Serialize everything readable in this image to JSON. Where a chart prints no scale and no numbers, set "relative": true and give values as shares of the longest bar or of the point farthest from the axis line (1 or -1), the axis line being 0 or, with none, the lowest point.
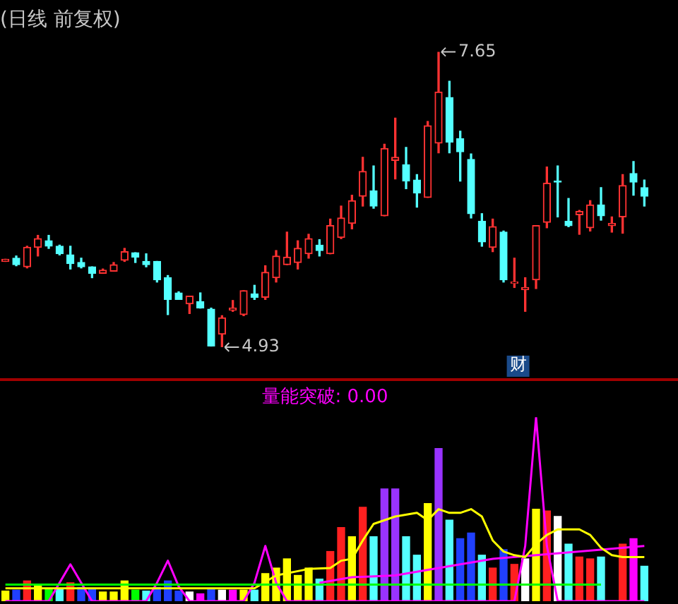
{
  "chart_data": [
    {
      "type": "candlestick",
      "title": "(日线 前复权)",
      "categories": [
        null,
        null,
        null,
        null,
        null,
        null,
        null,
        null,
        null,
        null,
        null,
        null,
        null,
        null,
        null,
        null,
        null,
        null,
        null,
        null,
        null,
        null,
        null,
        null,
        null,
        null,
        null,
        null,
        null,
        null,
        null,
        null,
        null,
        null,
        null,
        null,
        null,
        null,
        null,
        null,
        null,
        null,
        null,
        null,
        null,
        null,
        null,
        null,
        null,
        null,
        null,
        null,
        null,
        null,
        null,
        null,
        null,
        null,
        null,
        null
      ],
      "ohlc": [
        [
          5.72,
          5.74,
          5.72,
          5.74
        ],
        [
          5.75,
          5.77,
          5.68,
          5.69
        ],
        [
          5.67,
          5.86,
          5.66,
          5.85
        ],
        [
          5.85,
          5.96,
          5.77,
          5.93
        ],
        [
          5.91,
          5.96,
          5.84,
          5.86
        ],
        [
          5.86,
          5.87,
          5.78,
          5.79
        ],
        [
          5.78,
          5.86,
          5.65,
          5.7
        ],
        [
          5.71,
          5.75,
          5.66,
          5.67
        ],
        [
          5.67,
          5.67,
          5.57,
          5.61
        ],
        [
          5.61,
          5.65,
          5.61,
          5.64
        ],
        [
          5.63,
          5.71,
          5.63,
          5.69
        ],
        [
          5.73,
          5.84,
          5.72,
          5.81
        ],
        [
          5.8,
          5.8,
          5.71,
          5.76
        ],
        [
          5.72,
          5.79,
          5.67,
          5.69
        ],
        [
          5.72,
          5.72,
          5.53,
          5.55
        ],
        [
          5.57,
          5.59,
          5.23,
          5.37
        ],
        [
          5.43,
          5.44,
          5.37,
          5.37
        ],
        [
          5.33,
          5.4,
          5.24,
          5.4
        ],
        [
          5.35,
          5.43,
          5.29,
          5.29
        ],
        [
          5.28,
          5.29,
          4.94,
          4.94
        ],
        [
          5.05,
          5.22,
          4.93,
          5.2
        ],
        [
          5.27,
          5.36,
          5.26,
          5.29
        ],
        [
          5.23,
          5.45,
          5.22,
          5.45
        ],
        [
          5.42,
          5.5,
          5.37,
          5.39
        ],
        [
          5.39,
          5.68,
          5.37,
          5.62
        ],
        [
          5.57,
          5.82,
          5.53,
          5.77
        ],
        [
          5.69,
          5.99,
          5.69,
          5.76
        ],
        [
          5.71,
          5.91,
          5.65,
          5.84
        ],
        [
          5.79,
          5.97,
          5.75,
          5.93
        ],
        [
          5.87,
          5.92,
          5.77,
          5.82
        ],
        [
          5.79,
          6.11,
          5.79,
          6.05
        ],
        [
          5.94,
          6.23,
          5.93,
          6.12
        ],
        [
          6.07,
          6.33,
          6.02,
          6.28
        ],
        [
          6.32,
          6.68,
          6.23,
          6.55
        ],
        [
          6.37,
          6.6,
          6.21,
          6.23
        ],
        [
          6.14,
          6.8,
          6.14,
          6.76
        ],
        [
          6.65,
          7.04,
          6.48,
          6.68
        ],
        [
          6.61,
          6.77,
          6.39,
          6.46
        ],
        [
          6.47,
          6.52,
          6.22,
          6.35
        ],
        [
          6.31,
          7.01,
          6.31,
          6.97
        ],
        [
          6.81,
          7.65,
          6.72,
          7.28
        ],
        [
          7.23,
          7.38,
          6.72,
          6.82
        ],
        [
          6.85,
          6.92,
          6.46,
          6.73
        ],
        [
          6.66,
          6.71,
          6.12,
          6.16
        ],
        [
          6.09,
          6.16,
          5.86,
          5.9
        ],
        [
          5.85,
          6.11,
          5.81,
          6.04
        ],
        [
          5.99,
          6.0,
          5.53,
          5.55
        ],
        [
          5.52,
          5.75,
          5.48,
          5.53
        ],
        [
          5.46,
          5.57,
          5.26,
          5.48
        ],
        [
          5.55,
          6.05,
          5.47,
          6.05
        ],
        [
          6.08,
          6.59,
          6.03,
          6.44
        ],
        [
          6.46,
          6.6,
          6.13,
          6.45
        ],
        [
          6.09,
          6.3,
          6.04,
          6.05
        ],
        [
          6.15,
          6.19,
          5.97,
          6.18
        ],
        [
          6.03,
          6.28,
          6.0,
          6.24
        ],
        [
          6.24,
          6.4,
          6.1,
          6.14
        ],
        [
          6.05,
          6.13,
          5.99,
          6.07
        ],
        [
          6.13,
          6.52,
          5.98,
          6.42
        ],
        [
          6.53,
          6.64,
          6.33,
          6.45
        ],
        [
          6.4,
          6.47,
          6.23,
          6.32
        ]
      ],
      "annotations": [
        "7.65",
        "4.93",
        "财"
      ]
    },
    {
      "type": "bar",
      "relative": true,
      "title": "量能突破: 0.00",
      "categories": [
        null,
        null,
        null,
        null,
        null,
        null,
        null,
        null,
        null,
        null,
        null,
        null,
        null,
        null,
        null,
        null,
        null,
        null,
        null,
        null,
        null,
        null,
        null,
        null,
        null,
        null,
        null,
        null,
        null,
        null,
        null,
        null,
        null,
        null,
        null,
        null,
        null,
        null,
        null,
        null,
        null,
        null,
        null,
        null,
        null,
        null,
        null,
        null,
        null,
        null,
        null,
        null,
        null,
        null,
        null,
        null,
        null,
        null,
        null,
        null
      ],
      "series": [
        {
          "type": "bar",
          "colors": [
            "#ffff00",
            "#2040ff",
            "#ff2020",
            "#ffff00",
            "#00ff00",
            "#54ffff",
            "#ff2020",
            "#2040ff",
            "#2040ff",
            "#ffff00",
            "#ffff00",
            "#ffff00",
            "#00ff00",
            "#54ffff",
            "#2040ff",
            "#2040ff",
            "#2040ff",
            "#ffffff",
            "#ff00ff",
            "#2040ff",
            "#ffffff",
            "#ff00ff",
            "#ffff00",
            "#54ffff",
            "#ffff00",
            "#ffff00",
            "#ffff00",
            "#ffff00",
            "#ffff00",
            "#54ffff",
            "#ff2020",
            "#ff2020",
            "#ffff00",
            "#ff2020",
            "#54ffff",
            "#9933ff",
            "#9933ff",
            "#54ffff",
            "#54ffff",
            "#ffff00",
            "#9933ff",
            "#54ffff",
            "#2040ff",
            "#2040ff",
            "#54ffff",
            "#ff2020",
            "#2040ff",
            "#ff2020",
            "#ffffff",
            "#ffff00",
            "#ff2020",
            "#ffffff",
            "#54ffff",
            "#ff2020",
            "#ff2020",
            "#54ffff",
            "#ff2020",
            "#ff2020",
            "#ff00ff",
            "#54ffff"
          ],
          "values": [
            0.055,
            0.06,
            0.11,
            0.09,
            0.07,
            0.07,
            0.1,
            0.075,
            0.07,
            0.05,
            0.05,
            0.11,
            0.06,
            0.055,
            0.075,
            0.11,
            0.055,
            0.05,
            0.04,
            0.07,
            0.06,
            0.06,
            0.06,
            0.06,
            0.15,
            0.18,
            0.23,
            0.14,
            0.18,
            0.12,
            0.27,
            0.4,
            0.35,
            0.51,
            0.35,
            0.61,
            0.61,
            0.35,
            0.25,
            0.53,
            0.83,
            0.44,
            0.34,
            0.37,
            0.25,
            0.18,
            0.28,
            0.2,
            0.23,
            0.5,
            0.49,
            0.46,
            0.31,
            0.24,
            0.23,
            0.24,
            null,
            0.31,
            0.34,
            0.19
          ]
        },
        {
          "type": "line",
          "color": "#00ff00",
          "values": [
            0.09,
            null,
            null,
            null,
            null,
            null,
            null,
            null,
            null,
            null,
            null,
            null,
            null,
            null,
            null,
            null,
            null,
            null,
            null,
            null,
            null,
            null,
            null,
            null,
            null,
            null,
            null,
            null,
            null,
            null,
            null,
            null,
            null,
            null,
            null,
            null,
            null,
            null,
            null,
            null,
            null,
            null,
            null,
            null,
            null,
            null,
            null,
            null,
            null,
            null,
            null,
            null,
            null,
            null,
            null,
            0.09,
            null,
            null,
            null,
            null
          ]
        },
        {
          "type": "line",
          "color": "#ffff00",
          "values": [
            0.07,
            null,
            null,
            null,
            null,
            null,
            null,
            null,
            null,
            null,
            null,
            0.07,
            null,
            null,
            null,
            null,
            null,
            null,
            null,
            null,
            null,
            null,
            null,
            0.07,
            null,
            0.14,
            null,
            null,
            0.175,
            null,
            0.18,
            0.22,
            0.23,
            0.33,
            0.42,
            null,
            0.46,
            null,
            0.48,
            0.44,
            0.5,
            0.48,
            0.48,
            0.5,
            0.46,
            0.33,
            0.27,
            0.25,
            0.24,
            0.31,
            0.36,
            0.39,
            0.39,
            0.39,
            0.36,
            0.29,
            0.25,
            0.24,
            0.24,
            0.24
          ]
        },
        {
          "type": "line",
          "color": "#ff00ff",
          "values": [
            null,
            null,
            null,
            null,
            null,
            null,
            null,
            null,
            null,
            null,
            null,
            null,
            null,
            null,
            null,
            null,
            null,
            null,
            null,
            null,
            null,
            null,
            null,
            null,
            null,
            null,
            null,
            null,
            null,
            0.1,
            null,
            null,
            0.13,
            null,
            null,
            null,
            0.14,
            null,
            null,
            null,
            0.18,
            null,
            null,
            null,
            null,
            0.23,
            null,
            null,
            null,
            0.25,
            null,
            null,
            null,
            null,
            null,
            0.28,
            null,
            null,
            null,
            0.3
          ]
        },
        {
          "type": "line",
          "color": "#ff00ff",
          "values": [
            0,
            0,
            0,
            0,
            0,
            0.1,
            0.2,
            0.1,
            0,
            0,
            0,
            0,
            0,
            0,
            0.1,
            0.22,
            0.08,
            0,
            0,
            0,
            0,
            0,
            0,
            0.1,
            0.3,
            0.1,
            0,
            0,
            0,
            0,
            0,
            0,
            0,
            0,
            0,
            0,
            0,
            0,
            0,
            0,
            0,
            0,
            0,
            0,
            0,
            0,
            0,
            0,
            0.3,
            1.0,
            0.3,
            0,
            0,
            0,
            0,
            0,
            0,
            0,
            0,
            0
          ]
        }
      ]
    }
  ]
}
